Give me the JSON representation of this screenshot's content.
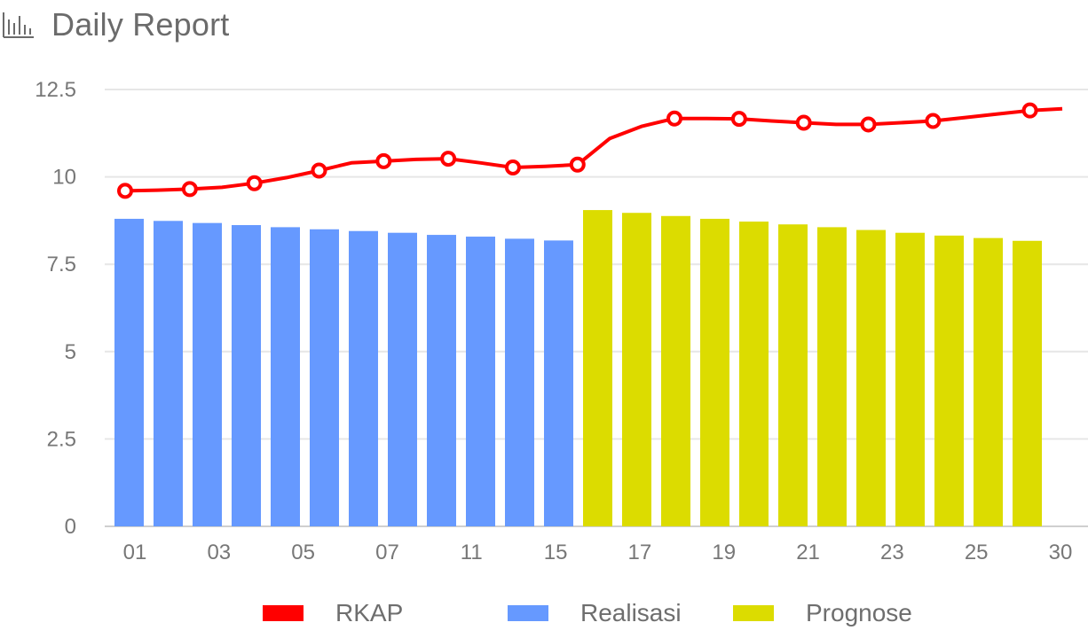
{
  "header": {
    "title": "Daily Report",
    "icon": "bar-chart-icon"
  },
  "chart_data": {
    "type": "bar",
    "title": "Daily Report",
    "xlabel": "",
    "ylabel": "",
    "ylim": [
      0,
      12.5
    ],
    "yticks": [
      "0",
      "2.5",
      "5",
      "7.5",
      "10",
      "12.5"
    ],
    "grid": true,
    "legend_position": "bottom",
    "x_tick_labels": [
      "01",
      "03",
      "05",
      "07",
      "11",
      "15",
      "17",
      "19",
      "21",
      "23",
      "25",
      "30"
    ],
    "series": [
      {
        "name": "Realisasi",
        "color": "#6699ff",
        "kind": "bar",
        "values": [
          8.8,
          8.74,
          8.68,
          8.62,
          8.56,
          8.5,
          8.45,
          8.4,
          8.34,
          8.29,
          8.23,
          8.18
        ]
      },
      {
        "name": "Prognose",
        "color": "#dcdc00",
        "kind": "bar",
        "values": [
          9.05,
          8.97,
          8.88,
          8.8,
          8.72,
          8.64,
          8.56,
          8.48,
          8.4,
          8.32,
          8.25,
          8.17
        ]
      },
      {
        "name": "RKAP",
        "color": "#ff0000",
        "kind": "line",
        "values": [
          9.6,
          9.62,
          9.65,
          9.7,
          9.82,
          9.98,
          10.18,
          10.4,
          10.45,
          10.5,
          10.52,
          10.4,
          10.27,
          10.3,
          10.35,
          11.1,
          11.45,
          11.67,
          11.67,
          11.66,
          11.6,
          11.55,
          11.5,
          11.5,
          11.55,
          11.6,
          11.7,
          11.8,
          11.9,
          11.95
        ],
        "marker_indices": [
          0,
          2,
          4,
          6,
          8,
          10,
          12,
          14,
          17,
          19,
          21,
          23,
          25,
          28
        ]
      }
    ]
  },
  "legend": [
    {
      "label": "RKAP",
      "color": "#ff0000"
    },
    {
      "label": "Realisasi",
      "color": "#6699ff"
    },
    {
      "label": "Prognose",
      "color": "#dcdc00"
    }
  ]
}
